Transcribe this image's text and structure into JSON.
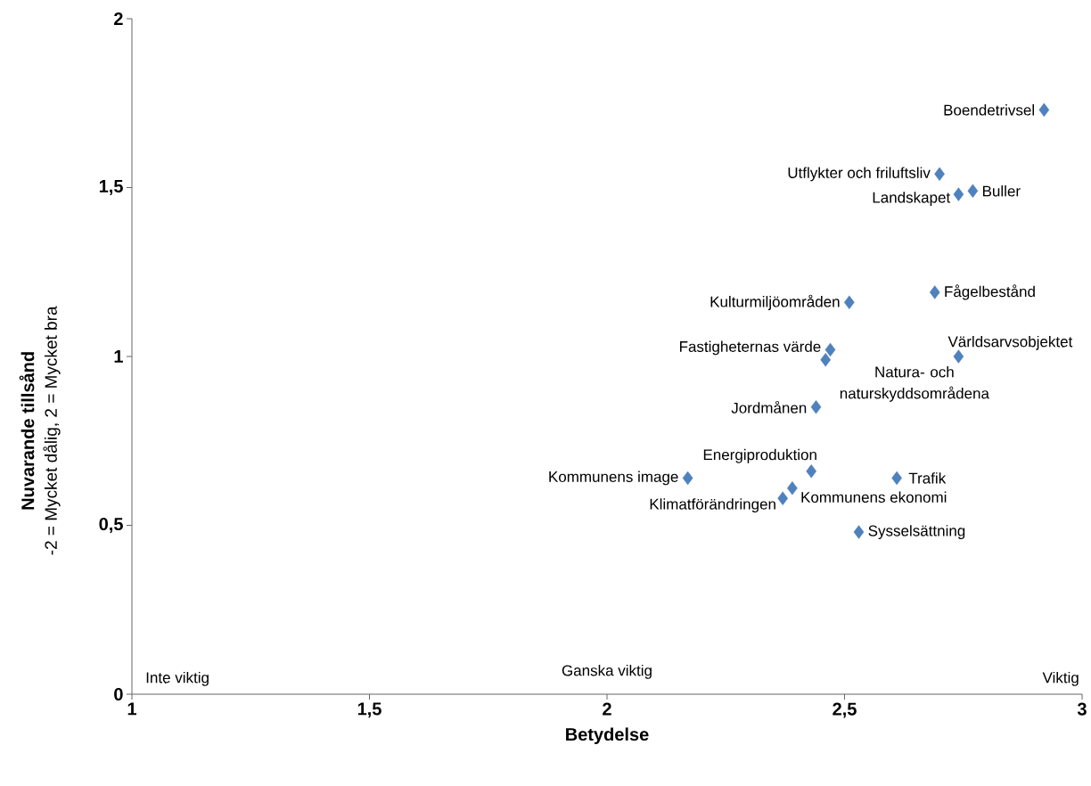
{
  "chart_data": {
    "type": "scatter",
    "xlabel": "Betydelse",
    "ylabel": "Nuvarande tillsånd",
    "x": [
      2.92,
      2.7,
      2.74,
      2.77,
      2.69,
      2.51,
      2.47,
      2.46,
      2.74,
      2.44,
      2.43,
      2.17,
      2.39,
      2.37,
      2.61,
      2.53
    ],
    "series": [
      {
        "color": "#4f81bd",
        "values": [
          1.73,
          1.54,
          1.48,
          1.49,
          1.19,
          1.16,
          1.02,
          0.99,
          1.0,
          0.85,
          0.66,
          0.64,
          0.61,
          0.58,
          0.64,
          0.48
        ]
      }
    ],
    "marker": "diamond",
    "xlim": [
      1,
      3
    ],
    "ylim": [
      0,
      2
    ],
    "xticks": [
      1,
      {
        "value": 1.5,
        "label": "1,5"
      },
      2,
      {
        "value": 2.5,
        "label": "2,5"
      },
      3
    ],
    "yticks": [
      0,
      {
        "value": 0.5,
        "label": "0,5"
      },
      1,
      {
        "value": 1.5,
        "label": "1,5"
      },
      2
    ],
    "annotations": [
      {
        "text": "Boendetrivsel",
        "x": 2.92,
        "y": 1.73
      },
      {
        "text": "Utflykter och friluftsliv",
        "x": 2.7,
        "y": 1.54
      },
      {
        "text": "Landskapet",
        "x": 2.74,
        "y": 1.48
      },
      {
        "text": "Buller",
        "x": 2.77,
        "y": 1.49
      },
      {
        "text": "Fågelbestånd",
        "x": 2.69,
        "y": 1.19
      },
      {
        "text": "Kulturmiljöområden",
        "x": 2.51,
        "y": 1.16
      },
      {
        "text": "Fastigheternas värde",
        "x": 2.47,
        "y": 1.02
      },
      {
        "text": "Natura- och naturskyddsområdena",
        "x": 2.46,
        "y": 0.99
      },
      {
        "text": "Världsarvsobjektet",
        "x": 2.74,
        "y": 1.0
      },
      {
        "text": "Jordmånen",
        "x": 2.44,
        "y": 0.85
      },
      {
        "text": "Energiproduktion",
        "x": 2.43,
        "y": 0.66
      },
      {
        "text": "Kommunens image",
        "x": 2.17,
        "y": 0.64
      },
      {
        "text": "Kommunens ekonomi",
        "x": 2.39,
        "y": 0.61
      },
      {
        "text": "Klimatförändringen",
        "x": 2.37,
        "y": 0.58
      },
      {
        "text": "Trafik",
        "x": 2.61,
        "y": 0.64
      },
      {
        "text": "Sysselsättning",
        "x": 2.53,
        "y": 0.48
      },
      "-2 = Mycket dålig, 2 = Mycket bra",
      "Inte viktig",
      "Ganska viktig",
      "Viktig"
    ]
  }
}
